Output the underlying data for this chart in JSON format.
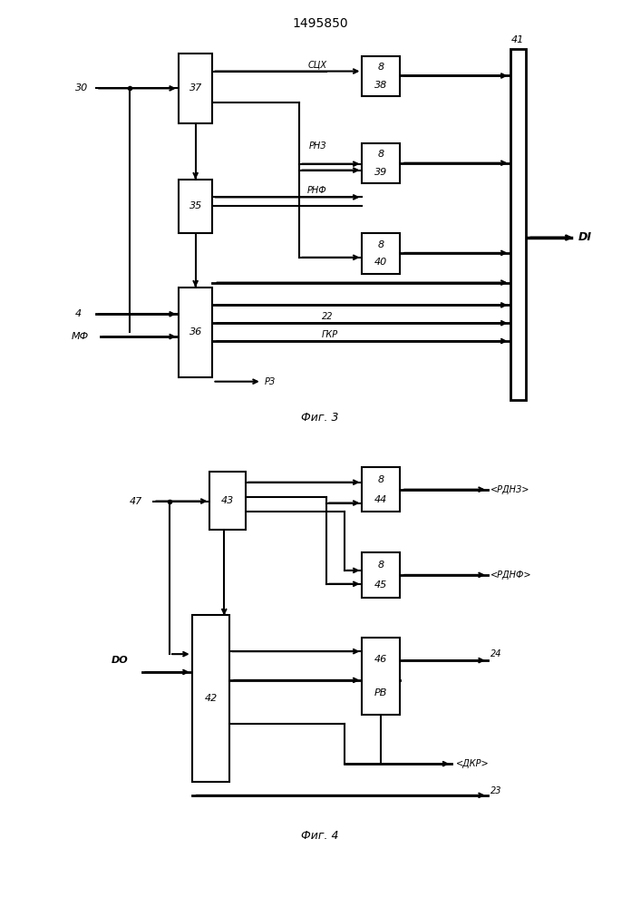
{
  "title": "1495850",
  "fig1_caption": "Фиг. 3",
  "fig2_caption": "Фиг. 4",
  "bg_color": "#ffffff"
}
